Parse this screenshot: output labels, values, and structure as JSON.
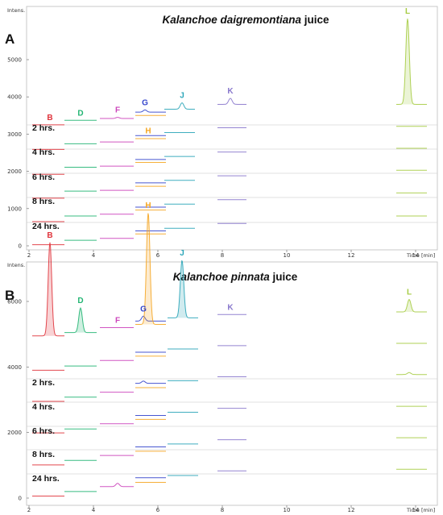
{
  "chart_data": [
    {
      "type": "line",
      "panel": "A",
      "title": {
        "italic": "Kalanchoe daigremontiana",
        "plain": " juice"
      },
      "ylabel": "Intens.",
      "xlabel": "Time [min]",
      "xlim": [
        2,
        14.6
      ],
      "ylim": [
        0,
        5000
      ],
      "x_ticks": [
        2,
        4,
        6,
        8,
        10,
        12,
        14
      ],
      "y_ticks": [
        0,
        1000,
        2000,
        3000,
        4000,
        5000
      ],
      "baseline_top": 3180,
      "traces": [
        {
          "label": "",
          "offset": 3180
        },
        {
          "label": "2 hrs.",
          "offset": 2490
        },
        {
          "label": "4 hrs.",
          "offset": 1850
        },
        {
          "label": "6 hrs.",
          "offset": 1200
        },
        {
          "label": "8 hrs.",
          "offset": 600
        },
        {
          "label": "24 hrs.",
          "offset": 0
        }
      ],
      "time_labels": [
        "2 hrs.",
        "4 hrs.",
        "6 hrs.",
        "8 hrs.",
        "24 hrs."
      ],
      "peaks": [
        {
          "name": "B",
          "color": "#e0343c",
          "rt": 2.65,
          "x0": 2.1,
          "x1": 3.1,
          "stagger": 70,
          "series": [
            {
              "level": 3250,
              "height": 0
            },
            {
              "level": 2590,
              "height": 0
            },
            {
              "level": 1920,
              "height": 0
            },
            {
              "level": 1280,
              "height": 0
            },
            {
              "level": 650,
              "height": 0
            },
            {
              "level": 30,
              "height": 0
            }
          ]
        },
        {
          "name": "D",
          "color": "#22b573",
          "rt": 3.6,
          "x0": 3.1,
          "x1": 4.1,
          "stagger": 0,
          "series": [
            {
              "level": 3370,
              "height": 0
            },
            {
              "level": 2740,
              "height": 0
            },
            {
              "level": 2110,
              "height": 0
            },
            {
              "level": 1470,
              "height": 0
            },
            {
              "level": 800,
              "height": 0
            },
            {
              "level": 150,
              "height": 0
            }
          ]
        },
        {
          "name": "F",
          "color": "#cc44bb",
          "rt": 4.75,
          "x0": 4.2,
          "x1": 5.25,
          "stagger": 0,
          "series": [
            {
              "level": 3420,
              "height": 30
            },
            {
              "level": 2790,
              "height": 0
            },
            {
              "level": 2140,
              "height": 0
            },
            {
              "level": 1490,
              "height": 0
            },
            {
              "level": 850,
              "height": 0
            },
            {
              "level": 200,
              "height": 0
            }
          ]
        },
        {
          "name": "G",
          "color": "#3344cc",
          "rt": 5.6,
          "x0": 5.3,
          "x1": 6.25,
          "stagger": 0,
          "series": [
            {
              "level": 3590,
              "height": 60
            },
            {
              "level": 2960,
              "height": 0
            },
            {
              "level": 2320,
              "height": 0
            },
            {
              "level": 1690,
              "height": 0
            },
            {
              "level": 1040,
              "height": 0
            },
            {
              "level": 400,
              "height": 0
            }
          ]
        },
        {
          "name": "H",
          "color": "#f5a623",
          "rt": 5.7,
          "x0": 5.3,
          "x1": 6.25,
          "stagger": 0,
          "series": [
            {
              "level": 3500,
              "height": 0
            },
            {
              "level": 2880,
              "height": 0
            },
            {
              "level": 2240,
              "height": 0
            },
            {
              "level": 1600,
              "height": 0
            },
            {
              "level": 960,
              "height": 0
            },
            {
              "level": 320,
              "height": 0
            }
          ]
        },
        {
          "name": "J",
          "color": "#2aa5b8",
          "rt": 6.75,
          "x0": 6.2,
          "x1": 7.15,
          "stagger": 0,
          "series": [
            {
              "level": 3670,
              "height": 170
            },
            {
              "level": 3040,
              "height": 0
            },
            {
              "level": 2400,
              "height": 0
            },
            {
              "level": 1760,
              "height": 0
            },
            {
              "level": 1120,
              "height": 0
            },
            {
              "level": 470,
              "height": 0
            }
          ]
        },
        {
          "name": "K",
          "color": "#8877cc",
          "rt": 8.25,
          "x0": 7.85,
          "x1": 8.75,
          "stagger": 0,
          "series": [
            {
              "level": 3800,
              "height": 160
            },
            {
              "level": 3170,
              "height": 0
            },
            {
              "level": 2520,
              "height": 0
            },
            {
              "level": 1880,
              "height": 0
            },
            {
              "level": 1240,
              "height": 0
            },
            {
              "level": 600,
              "height": 0
            }
          ]
        },
        {
          "name": "L",
          "color": "#a6cc44",
          "rt": 13.75,
          "x0": 13.4,
          "x1": 14.35,
          "stagger": 0,
          "series": [
            {
              "level": 3800,
              "height": 2300
            },
            {
              "level": 3210,
              "height": 0
            },
            {
              "level": 2620,
              "height": 0
            },
            {
              "level": 2030,
              "height": 0
            },
            {
              "level": 1420,
              "height": 0
            },
            {
              "level": 800,
              "height": 0
            }
          ]
        }
      ]
    },
    {
      "type": "line",
      "panel": "B",
      "title": {
        "italic": "Kalanchoe pinnata",
        "plain": " juice"
      },
      "ylabel": "Intens.",
      "xlabel": "Time [min]",
      "xlim": [
        2,
        14.6
      ],
      "ylim": [
        0,
        8000
      ],
      "x_ticks": [
        2,
        4,
        6,
        8,
        10,
        12,
        14
      ],
      "y_ticks": [
        0,
        2000,
        4000,
        6000
      ],
      "baseline_top": 4850,
      "traces": [
        {
          "label": "",
          "offset": 4850
        },
        {
          "label": "2 hrs.",
          "offset": 3900
        },
        {
          "label": "4 hrs.",
          "offset": 2950
        },
        {
          "label": "6 hrs.",
          "offset": 1970
        },
        {
          "label": "8 hrs.",
          "offset": 1000
        },
        {
          "label": "24 hrs.",
          "offset": 0
        }
      ],
      "time_labels": [
        "2 hrs.",
        "4 hrs.",
        "6 hrs.",
        "8 hrs.",
        "24 hrs."
      ],
      "peaks": [
        {
          "name": "B",
          "color": "#e0343c",
          "rt": 2.65,
          "x0": 2.1,
          "x1": 3.1,
          "stagger": 0,
          "series": [
            {
              "level": 4950,
              "height": 2850
            },
            {
              "level": 3900,
              "height": 0
            },
            {
              "level": 2950,
              "height": 0
            },
            {
              "level": 1990,
              "height": 0
            },
            {
              "level": 1010,
              "height": 0
            },
            {
              "level": 60,
              "height": 0
            }
          ]
        },
        {
          "name": "D",
          "color": "#22b573",
          "rt": 3.6,
          "x0": 3.1,
          "x1": 4.1,
          "stagger": 0,
          "series": [
            {
              "level": 5050,
              "height": 750
            },
            {
              "level": 4030,
              "height": 0
            },
            {
              "level": 3080,
              "height": 0
            },
            {
              "level": 2110,
              "height": 0
            },
            {
              "level": 1150,
              "height": 0
            },
            {
              "level": 200,
              "height": 0
            }
          ]
        },
        {
          "name": "F",
          "color": "#cc44bb",
          "rt": 4.75,
          "x0": 4.2,
          "x1": 5.25,
          "stagger": 0,
          "series": [
            {
              "level": 5200,
              "height": 0
            },
            {
              "level": 4200,
              "height": 0
            },
            {
              "level": 3230,
              "height": 0
            },
            {
              "level": 2270,
              "height": 0
            },
            {
              "level": 1300,
              "height": 0
            },
            {
              "level": 350,
              "height": 100
            }
          ]
        },
        {
          "name": "G",
          "color": "#3344cc",
          "rt": 5.55,
          "x0": 5.3,
          "x1": 6.25,
          "stagger": 0,
          "series": [
            {
              "level": 5400,
              "height": 150
            },
            {
              "level": 4450,
              "height": 0
            },
            {
              "level": 3500,
              "height": 70
            },
            {
              "level": 2520,
              "height": 0
            },
            {
              "level": 1560,
              "height": 0
            },
            {
              "level": 620,
              "height": 0
            }
          ]
        },
        {
          "name": "H",
          "color": "#f5a623",
          "rt": 5.7,
          "x0": 5.3,
          "x1": 6.25,
          "stagger": 0,
          "series": [
            {
              "level": 5300,
              "height": 3400
            },
            {
              "level": 4330,
              "height": 0
            },
            {
              "level": 3370,
              "height": 0
            },
            {
              "level": 2400,
              "height": 0
            },
            {
              "level": 1430,
              "height": 0
            },
            {
              "level": 480,
              "height": 0
            }
          ]
        },
        {
          "name": "J",
          "color": "#2aa5b8",
          "rt": 6.75,
          "x0": 6.3,
          "x1": 7.25,
          "stagger": 0,
          "series": [
            {
              "level": 5500,
              "height": 1750
            },
            {
              "level": 4550,
              "height": 0
            },
            {
              "level": 3580,
              "height": 0
            },
            {
              "level": 2620,
              "height": 0
            },
            {
              "level": 1650,
              "height": 0
            },
            {
              "level": 690,
              "height": 0
            }
          ]
        },
        {
          "name": "K",
          "color": "#8877cc",
          "rt": 8.25,
          "x0": 7.85,
          "x1": 8.75,
          "stagger": 0,
          "series": [
            {
              "level": 5600,
              "height": 0
            },
            {
              "level": 4650,
              "height": 0
            },
            {
              "level": 3700,
              "height": 0
            },
            {
              "level": 2740,
              "height": 0
            },
            {
              "level": 1780,
              "height": 0
            },
            {
              "level": 830,
              "height": 0
            }
          ]
        },
        {
          "name": "L",
          "color": "#a6cc44",
          "rt": 13.8,
          "x0": 13.4,
          "x1": 14.35,
          "stagger": 0,
          "series": [
            {
              "level": 5680,
              "height": 380
            },
            {
              "level": 4720,
              "height": 0
            },
            {
              "level": 3770,
              "height": 60
            },
            {
              "level": 2800,
              "height": 0
            },
            {
              "level": 1840,
              "height": 0
            },
            {
              "level": 880,
              "height": 0
            }
          ]
        }
      ]
    }
  ]
}
